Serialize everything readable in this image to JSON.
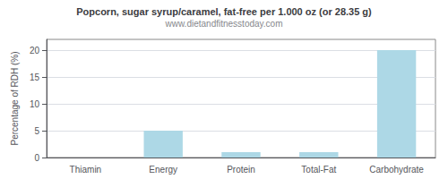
{
  "chart_data": {
    "type": "bar",
    "title": "Popcorn, sugar syrup/caramel, fat-free per 1.000 oz (or 28.35 g)",
    "subtitle": "www.dietandfitnesstoday.com",
    "categories": [
      "Thiamin",
      "Energy",
      "Protein",
      "Total-Fat",
      "Carbohydrate"
    ],
    "values": [
      0,
      5,
      1,
      1,
      20
    ],
    "color": "#add8e6",
    "ylabel": "Percentage of RDH (%)",
    "ylim": [
      0,
      22
    ],
    "yticks": [
      0,
      5,
      10,
      15,
      20
    ],
    "grid": true
  }
}
